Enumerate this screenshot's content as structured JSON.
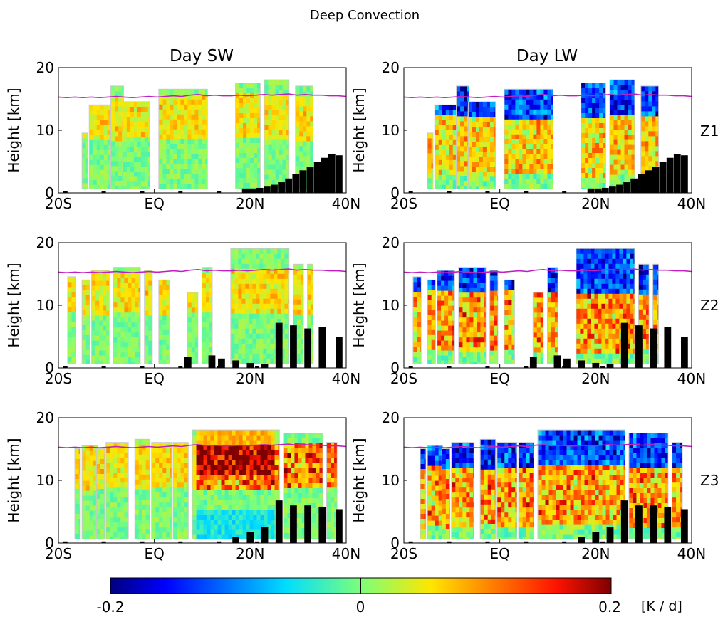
{
  "figure": {
    "title": "Deep Convection",
    "column_titles": [
      "Day SW",
      "Day LW"
    ],
    "row_labels": [
      "Z1",
      "Z2",
      "Z3"
    ]
  },
  "chart_data": {
    "type": "heatmap",
    "suptitle": "Deep Convection",
    "ylabel": "Height [km]",
    "x_ticks": [
      "20S",
      "EQ",
      "20N",
      "40N"
    ],
    "x_tick_values": [
      -20,
      0,
      20,
      40
    ],
    "xlim": [
      -20,
      40
    ],
    "y_ticks": [
      "0",
      "10",
      "20"
    ],
    "y_tick_values": [
      0,
      10,
      20
    ],
    "ylim": [
      0,
      20
    ],
    "colorbar": {
      "label": "[K / d]",
      "ticks": [
        "-0.2",
        "0",
        "0.2"
      ],
      "tick_values": [
        -0.2,
        0,
        0.2
      ],
      "range": [
        -0.2,
        0.2
      ],
      "colormap": "jet"
    },
    "line_color": "#c020c0",
    "terrain_color": "#000000",
    "tropopause_km": [
      15.3,
      15.2,
      15.3,
      15.2,
      15.3,
      15.2,
      15.3,
      15.4,
      15.3,
      15.2,
      15.3,
      15.4,
      15.3,
      15.4,
      15.5,
      15.4,
      15.6,
      15.7,
      15.5,
      15.6,
      15.5,
      15.5,
      15.6,
      15.5,
      15.6,
      15.7,
      15.6,
      15.7,
      15.8,
      15.6,
      15.7,
      15.6,
      15.6,
      15.5,
      15.5,
      15.4
    ],
    "terrain_km": [
      {
        "lat": 19,
        "h": 0.7
      },
      {
        "lat": 20.5,
        "h": 0.7
      },
      {
        "lat": 22,
        "h": 0.8
      },
      {
        "lat": 23.5,
        "h": 1.0
      },
      {
        "lat": 25,
        "h": 1.3
      },
      {
        "lat": 26.5,
        "h": 1.7
      },
      {
        "lat": 28,
        "h": 2.3
      },
      {
        "lat": 29.5,
        "h": 3.0
      },
      {
        "lat": 31,
        "h": 3.6
      },
      {
        "lat": 32.5,
        "h": 4.2
      },
      {
        "lat": 34,
        "h": 5.0
      },
      {
        "lat": 35.5,
        "h": 5.6
      },
      {
        "lat": 37,
        "h": 6.2
      },
      {
        "lat": 38.5,
        "h": 6.0
      }
    ],
    "panels": [
      {
        "row": "Z1",
        "column": "Day SW"
      },
      {
        "row": "Z1",
        "column": "Day LW"
      },
      {
        "row": "Z2",
        "column": "Day SW"
      },
      {
        "row": "Z2",
        "column": "Day LW"
      },
      {
        "row": "Z3",
        "column": "Day SW"
      },
      {
        "row": "Z3",
        "column": "Day LW"
      }
    ]
  }
}
